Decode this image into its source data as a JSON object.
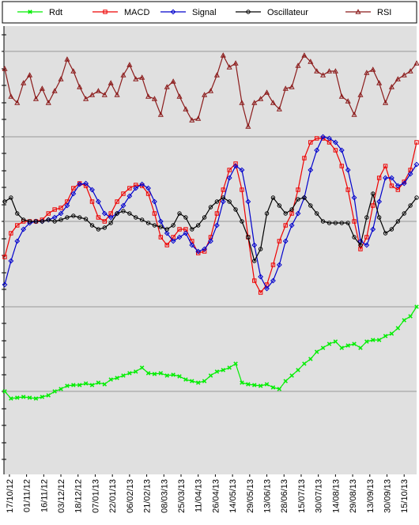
{
  "chart_data": {
    "type": "line",
    "x": [
      -3,
      1,
      5,
      9,
      13,
      17,
      21,
      25,
      29,
      33,
      37,
      41,
      45,
      49,
      53,
      57,
      61,
      65,
      69,
      73,
      77,
      81,
      85,
      89,
      93,
      97,
      101,
      105,
      109,
      113,
      117,
      121,
      125,
      129,
      133,
      137,
      141,
      145,
      149,
      153,
      157,
      161,
      165,
      169,
      173,
      177,
      181,
      185,
      189,
      193,
      197,
      201,
      205,
      209,
      213,
      217,
      221,
      225,
      229,
      233,
      237,
      241,
      245,
      249,
      253,
      257,
      261
    ],
    "xlim": [
      -3.5,
      261
    ],
    "xticks": [
      {
        "value": 0,
        "label": "17/10/12"
      },
      {
        "value": 11,
        "label": "01/11/12"
      },
      {
        "value": 22,
        "label": "16/11/12"
      },
      {
        "value": 33,
        "label": "03/12/12"
      },
      {
        "value": 44,
        "label": "18/12/12"
      },
      {
        "value": 55,
        "label": "07/01/13"
      },
      {
        "value": 66,
        "label": "22/01/13"
      },
      {
        "value": 77,
        "label": "06/02/13"
      },
      {
        "value": 88,
        "label": "21/02/13"
      },
      {
        "value": 99,
        "label": "08/03/13"
      },
      {
        "value": 110,
        "label": "25/03/13"
      },
      {
        "value": 121,
        "label": "11/04/13"
      },
      {
        "value": 132,
        "label": "26/04/13"
      },
      {
        "value": 143,
        "label": "14/05/13"
      },
      {
        "value": 154,
        "label": "29/05/13"
      },
      {
        "value": 165,
        "label": "13/06/13"
      },
      {
        "value": 176,
        "label": "28/06/13"
      },
      {
        "value": 187,
        "label": "15/07/13"
      },
      {
        "value": 198,
        "label": "30/07/13"
      },
      {
        "value": 209,
        "label": "14/08/13"
      },
      {
        "value": 220,
        "label": "29/08/13"
      },
      {
        "value": 231,
        "label": "13/09/13"
      },
      {
        "value": 242,
        "label": "30/09/13"
      },
      {
        "value": 253,
        "label": "15/10/13"
      }
    ],
    "ylim": [
      0,
      567
    ],
    "yticks": [
      19,
      40,
      62,
      83,
      105,
      126,
      148,
      169,
      191,
      212,
      234,
      255,
      277,
      298,
      320,
      341,
      363,
      384,
      406,
      427,
      449,
      470,
      492,
      513,
      535,
      556
    ],
    "ygrid": [
      105,
      212,
      320,
      427,
      535
    ],
    "grid": true,
    "legend": "top",
    "series": [
      {
        "name": "Rdt",
        "color": "#00ee00",
        "marker": "x",
        "values": [
          105,
          96,
          97,
          98,
          97,
          96,
          98,
          100,
          105,
          108,
          112,
          113,
          113,
          115,
          113,
          116,
          114,
          120,
          122,
          125,
          128,
          130,
          135,
          128,
          127,
          128,
          125,
          126,
          124,
          120,
          118,
          116,
          118,
          125,
          130,
          132,
          135,
          140,
          116,
          114,
          113,
          112,
          114,
          110,
          108,
          118,
          125,
          132,
          140,
          146,
          155,
          160,
          165,
          168,
          160,
          163,
          165,
          160,
          168,
          170,
          170,
          175,
          178,
          185,
          195,
          200,
          212
        ]
      },
      {
        "name": "MACD",
        "color": "#ee0000",
        "marker": "square",
        "values": [
          275,
          305,
          315,
          320,
          320,
          320,
          322,
          330,
          335,
          337,
          345,
          362,
          368,
          365,
          345,
          325,
          320,
          330,
          345,
          355,
          362,
          366,
          365,
          355,
          330,
          300,
          290,
          300,
          310,
          310,
          295,
          280,
          282,
          300,
          330,
          360,
          385,
          393,
          360,
          300,
          245,
          230,
          240,
          265,
          295,
          315,
          330,
          360,
          400,
          420,
          425,
          425,
          420,
          410,
          390,
          360,
          320,
          285,
          300,
          340,
          375,
          390,
          365,
          360,
          370,
          385,
          420
        ]
      },
      {
        "name": "Signal",
        "color": "#0000cc",
        "marker": "diamond",
        "values": [
          240,
          270,
          295,
          310,
          318,
          320,
          320,
          322,
          325,
          330,
          340,
          355,
          367,
          368,
          360,
          345,
          330,
          325,
          330,
          340,
          352,
          362,
          367,
          362,
          345,
          320,
          305,
          295,
          300,
          305,
          290,
          282,
          285,
          295,
          315,
          345,
          375,
          390,
          385,
          345,
          290,
          250,
          235,
          245,
          265,
          295,
          315,
          330,
          350,
          385,
          410,
          427,
          425,
          420,
          410,
          385,
          350,
          295,
          290,
          310,
          345,
          375,
          375,
          365,
          368,
          380,
          392
        ]
      },
      {
        "name": "Oscillateur",
        "color": "#000000",
        "marker": "circle",
        "values": [
          345,
          350,
          330,
          322,
          320,
          320,
          320,
          322,
          320,
          322,
          325,
          327,
          325,
          323,
          315,
          310,
          312,
          318,
          330,
          333,
          330,
          325,
          322,
          318,
          315,
          313,
          310,
          315,
          330,
          325,
          310,
          315,
          325,
          338,
          345,
          350,
          345,
          335,
          320,
          300,
          270,
          285,
          330,
          350,
          340,
          330,
          335,
          348,
          350,
          340,
          330,
          320,
          318,
          318,
          318,
          318,
          300,
          290,
          325,
          355,
          325,
          305,
          310,
          320,
          330,
          340,
          350
        ]
      },
      {
        "name": "RSI",
        "color": "#8b1a1a",
        "marker": "triangle",
        "values": [
          513,
          478,
          470,
          495,
          505,
          475,
          488,
          470,
          485,
          500,
          525,
          510,
          490,
          475,
          480,
          485,
          480,
          495,
          480,
          505,
          518,
          500,
          502,
          478,
          475,
          455,
          490,
          497,
          478,
          462,
          448,
          450,
          480,
          485,
          505,
          530,
          515,
          520,
          470,
          440,
          470,
          475,
          483,
          470,
          462,
          488,
          490,
          517,
          530,
          522,
          510,
          505,
          510,
          510,
          478,
          472,
          455,
          480,
          508,
          512,
          495,
          470,
          490,
          500,
          505,
          510,
          520
        ]
      }
    ]
  }
}
